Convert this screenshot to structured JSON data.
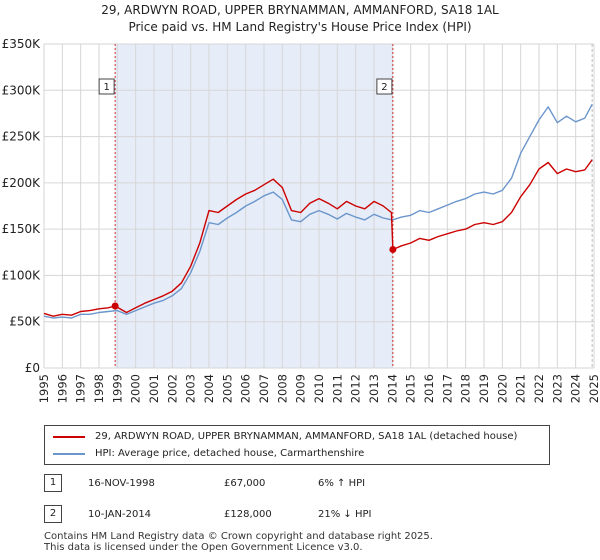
{
  "title": {
    "line1": "29, ARDWYN ROAD, UPPER BRYNAMMAN, AMMANFORD, SA18 1AL",
    "line2": "Price paid vs. HM Land Registry's House Price Index (HPI)"
  },
  "chart_data": {
    "type": "line",
    "title": "29, ARDWYN ROAD, UPPER BRYNAMMAN, AMMANFORD, SA18 1AL — Price paid vs. HM Land Registry's House Price Index (HPI)",
    "xlabel": "",
    "ylabel": "",
    "xlim": [
      1995,
      2025
    ],
    "ylim": [
      0,
      350000
    ],
    "yticks": [
      0,
      50000,
      100000,
      150000,
      200000,
      250000,
      300000,
      350000
    ],
    "ytick_labels": [
      "£0",
      "£50K",
      "£100K",
      "£150K",
      "£200K",
      "£250K",
      "£300K",
      "£350K"
    ],
    "xticks": [
      1995,
      1996,
      1997,
      1998,
      1999,
      2000,
      2001,
      2002,
      2003,
      2004,
      2005,
      2006,
      2007,
      2008,
      2009,
      2010,
      2011,
      2012,
      2013,
      2014,
      2015,
      2016,
      2017,
      2018,
      2019,
      2020,
      2021,
      2022,
      2023,
      2024,
      2025
    ],
    "xtick_labels": [
      "1995",
      "1996",
      "1997",
      "1998",
      "1999",
      "2000",
      "2001",
      "2002",
      "2003",
      "2004",
      "2005",
      "2006",
      "2007",
      "2008",
      "2009",
      "2010",
      "2011",
      "2012",
      "2013",
      "2014",
      "2015",
      "2016",
      "2017",
      "2018",
      "2019",
      "2020",
      "2021",
      "2022",
      "2023",
      "2024",
      "2025"
    ],
    "grid": true,
    "shaded_region": {
      "from": 1998.88,
      "to": 2014.03,
      "color": "#e6ecf8"
    },
    "series": [
      {
        "name": "29, ARDWYN ROAD, UPPER BRYNAMMAN, AMMANFORD, SA18 1AL (detached house)",
        "color": "#cc0000",
        "x": [
          1995.0,
          1995.5,
          1996.0,
          1996.5,
          1997.0,
          1997.5,
          1998.0,
          1998.5,
          1998.88,
          1999.5,
          2000.0,
          2000.5,
          2001.0,
          2001.5,
          2002.0,
          2002.5,
          2003.0,
          2003.5,
          2004.0,
          2004.5,
          2005.0,
          2005.5,
          2006.0,
          2006.5,
          2007.0,
          2007.5,
          2008.0,
          2008.5,
          2009.0,
          2009.5,
          2010.0,
          2010.5,
          2011.0,
          2011.5,
          2012.0,
          2012.5,
          2013.0,
          2013.5,
          2013.95,
          2014.03,
          2014.5,
          2015.0,
          2015.5,
          2016.0,
          2016.5,
          2017.0,
          2017.5,
          2018.0,
          2018.5,
          2019.0,
          2019.5,
          2020.0,
          2020.5,
          2021.0,
          2021.5,
          2022.0,
          2022.5,
          2023.0,
          2023.5,
          2024.0,
          2024.5,
          2024.9
        ],
        "values": [
          59000,
          56000,
          58000,
          57000,
          61000,
          62000,
          64000,
          65000,
          67000,
          60000,
          65000,
          70000,
          74000,
          78000,
          83000,
          92000,
          110000,
          135000,
          170000,
          168000,
          175000,
          182000,
          188000,
          192000,
          198000,
          204000,
          195000,
          170000,
          168000,
          178000,
          183000,
          178000,
          172000,
          180000,
          175000,
          172000,
          180000,
          175000,
          168000,
          128000,
          132000,
          135000,
          140000,
          138000,
          142000,
          145000,
          148000,
          150000,
          155000,
          157000,
          155000,
          158000,
          168000,
          185000,
          198000,
          215000,
          222000,
          210000,
          215000,
          212000,
          214000,
          225000
        ]
      },
      {
        "name": "HPI: Average price, detached house, Carmarthenshire",
        "color": "#6b96cc",
        "x": [
          1995.0,
          1995.5,
          1996.0,
          1996.5,
          1997.0,
          1997.5,
          1998.0,
          1998.5,
          1999.0,
          1999.5,
          2000.0,
          2000.5,
          2001.0,
          2001.5,
          2002.0,
          2002.5,
          2003.0,
          2003.5,
          2004.0,
          2004.5,
          2005.0,
          2005.5,
          2006.0,
          2006.5,
          2007.0,
          2007.5,
          2008.0,
          2008.5,
          2009.0,
          2009.5,
          2010.0,
          2010.5,
          2011.0,
          2011.5,
          2012.0,
          2012.5,
          2013.0,
          2013.5,
          2014.0,
          2014.5,
          2015.0,
          2015.5,
          2016.0,
          2016.5,
          2017.0,
          2017.5,
          2018.0,
          2018.5,
          2019.0,
          2019.5,
          2020.0,
          2020.5,
          2021.0,
          2021.5,
          2022.0,
          2022.5,
          2023.0,
          2023.5,
          2024.0,
          2024.5,
          2024.9
        ],
        "values": [
          56000,
          54000,
          55000,
          54000,
          58000,
          58000,
          60000,
          61000,
          62000,
          58000,
          62000,
          66000,
          70000,
          73000,
          78000,
          86000,
          103000,
          126000,
          157000,
          155000,
          162000,
          168000,
          175000,
          180000,
          186000,
          190000,
          182000,
          160000,
          158000,
          166000,
          170000,
          166000,
          161000,
          167000,
          163000,
          160000,
          166000,
          162000,
          160000,
          163000,
          165000,
          170000,
          168000,
          172000,
          176000,
          180000,
          183000,
          188000,
          190000,
          188000,
          192000,
          205000,
          232000,
          250000,
          268000,
          282000,
          265000,
          272000,
          266000,
          270000,
          285000
        ]
      }
    ],
    "annotations": [
      {
        "label": "1",
        "x": 1998.88,
        "value": 67000
      },
      {
        "label": "2",
        "x": 2014.03,
        "value": 128000
      }
    ]
  },
  "legend": {
    "items": [
      {
        "label": "29, ARDWYN ROAD, UPPER BRYNAMMAN, AMMANFORD, SA18 1AL (detached house)",
        "color": "#cc0000"
      },
      {
        "label": "HPI: Average price, detached house, Carmarthenshire",
        "color": "#6b96cc"
      }
    ]
  },
  "transactions": [
    {
      "num": "1",
      "date": "16-NOV-1998",
      "price": "£67,000",
      "hpi": "6% ↑ HPI"
    },
    {
      "num": "2",
      "date": "10-JAN-2014",
      "price": "£128,000",
      "hpi": "21% ↓ HPI"
    }
  ],
  "footer": {
    "line1": "Contains HM Land Registry data © Crown copyright and database right 2025.",
    "line2": "This data is licensed under the Open Government Licence v3.0."
  }
}
